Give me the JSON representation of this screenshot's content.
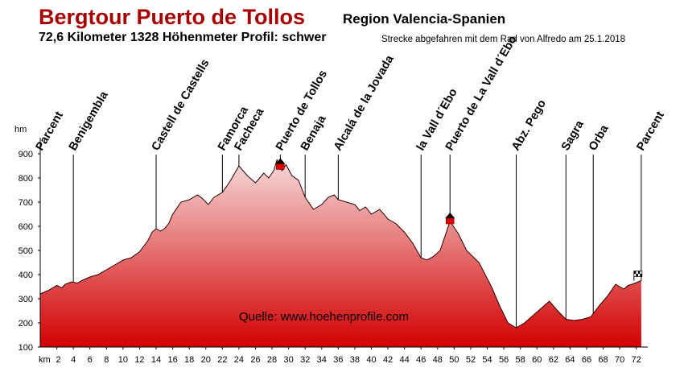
{
  "header": {
    "title": "Bergtour Puerto de Tollos",
    "region": "Region Valencia-Spanien",
    "stats": "72,6 Kilometer  1328 Höhenmeter  Profil: schwer",
    "note": "Strecke abgefahren mit dem Rad von Alfredo am 25.1.2018"
  },
  "chart_data": {
    "type": "area",
    "xlabel": "km",
    "ylabel": "hm",
    "xlim": [
      0,
      73
    ],
    "ylim": [
      100,
      900
    ],
    "x_ticks": [
      2,
      4,
      6,
      8,
      10,
      12,
      14,
      16,
      18,
      20,
      22,
      24,
      26,
      28,
      30,
      32,
      34,
      36,
      38,
      40,
      42,
      44,
      46,
      48,
      50,
      52,
      54,
      56,
      58,
      60,
      62,
      64,
      66,
      68,
      70,
      72
    ],
    "y_ticks": [
      100,
      200,
      300,
      400,
      500,
      600,
      700,
      800,
      900
    ],
    "grid": false,
    "series": [
      {
        "x": [
          0,
          1,
          2,
          2.6,
          3,
          3.8,
          4.5,
          5,
          6,
          7,
          8,
          9,
          10,
          11,
          12,
          13,
          13.5,
          14,
          14.5,
          15,
          15.5,
          16,
          17,
          18,
          19,
          19.6,
          20.3,
          21,
          22,
          23,
          24,
          25,
          26,
          27,
          27.6,
          28.2,
          28.6,
          29.2,
          29.7,
          30.4,
          31.2,
          32,
          33,
          34,
          34.8,
          35.5,
          36,
          37,
          38,
          38.6,
          39.3,
          40,
          41,
          42,
          43,
          44,
          45,
          46,
          46.7,
          47.5,
          48.3,
          49.5,
          50.5,
          51.5,
          53,
          54.5,
          55.5,
          56.5,
          57.5,
          58.5,
          59.5,
          60.5,
          61.5,
          62.5,
          63.5,
          64.5,
          65.5,
          66.5,
          67.5,
          68.5,
          69.5,
          70.5,
          71,
          71.5,
          72.6
        ],
        "values": [
          320,
          335,
          355,
          345,
          360,
          370,
          365,
          375,
          390,
          400,
          420,
          440,
          460,
          470,
          495,
          540,
          575,
          590,
          580,
          590,
          610,
          650,
          700,
          710,
          730,
          715,
          690,
          720,
          740,
          790,
          850,
          810,
          780,
          820,
          800,
          830,
          875,
          830,
          855,
          810,
          790,
          720,
          670,
          690,
          720,
          730,
          710,
          700,
          690,
          665,
          680,
          650,
          670,
          630,
          610,
          575,
          530,
          470,
          460,
          475,
          500,
          620,
          570,
          500,
          450,
          350,
          270,
          200,
          180,
          200,
          230,
          260,
          290,
          250,
          215,
          210,
          215,
          225,
          270,
          310,
          360,
          340,
          355,
          360,
          375
        ]
      }
    ],
    "annotations": [
      {
        "label": "Parcent",
        "km": 0
      },
      {
        "label": "Benigembla",
        "km": 4
      },
      {
        "label": "Castell de Castells",
        "km": 14
      },
      {
        "label": "Famorca",
        "km": 22
      },
      {
        "label": "Facheca",
        "km": 24
      },
      {
        "label": "Puerto de Tollos",
        "km": 29
      },
      {
        "label": "Benaja",
        "km": 32
      },
      {
        "label": "Alcalá de la Jovada",
        "km": 36
      },
      {
        "label": "la Vall d´Ebo",
        "km": 46
      },
      {
        "label": "Puerto de La Vall d´Ebo",
        "km": 49.5
      },
      {
        "label": "Abz. Pego",
        "km": 57.5
      },
      {
        "label": "Sagra",
        "km": 63.5
      },
      {
        "label": "Orba",
        "km": 66.8
      },
      {
        "label": "Parcent",
        "km": 72.6
      }
    ],
    "pass_markers_km": [
      29,
      49.5
    ],
    "finish_flag_km": 72.6,
    "source_text": "Quelle: www.hoehenprofile.com",
    "colors": {
      "fill_top": "#f6dada",
      "fill_bottom": "#d20000",
      "title": "#a80000",
      "marker": "#e00000"
    }
  }
}
